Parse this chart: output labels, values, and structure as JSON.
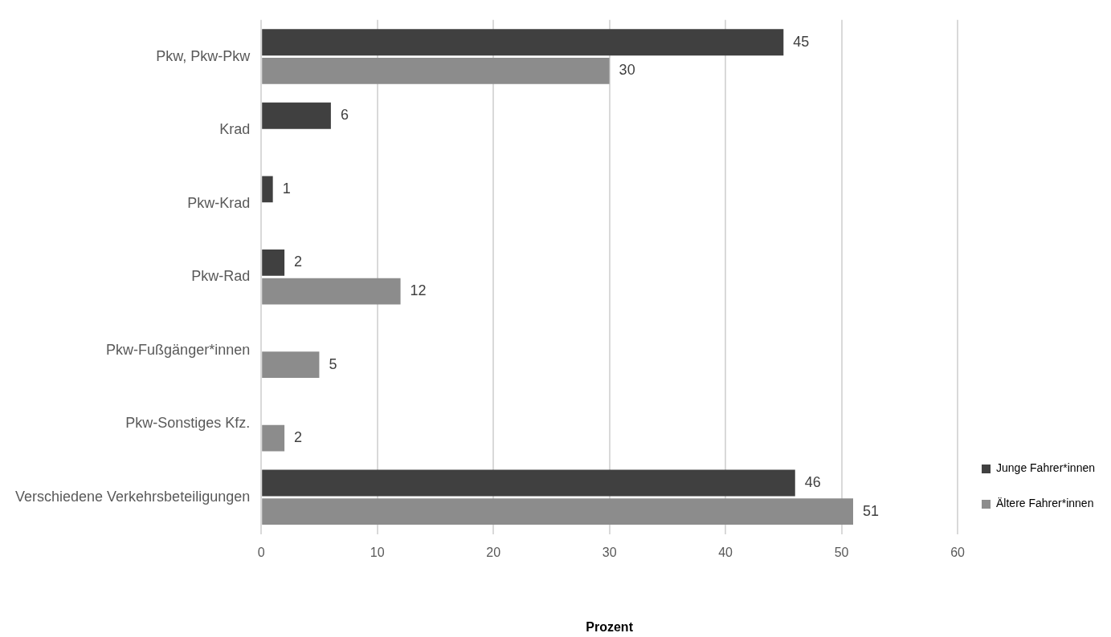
{
  "chart_data": {
    "type": "bar",
    "orientation": "horizontal",
    "xlabel": "Prozent",
    "categories": [
      "Pkw, Pkw-Pkw",
      "Krad",
      "Pkw-Krad",
      "Pkw-Rad",
      "Pkw-Fußgänger*innen",
      "Pkw-Sonstiges Kfz.",
      "Verschiedene Verkehrsbeteiligungen"
    ],
    "series": [
      {
        "name": "Junge Fahrer*innen",
        "color": "#404040",
        "values": [
          45,
          6,
          1,
          2,
          null,
          null,
          46
        ]
      },
      {
        "name": "Ältere Fahrer*innen",
        "color": "#8c8c8c",
        "values": [
          30,
          null,
          null,
          12,
          5,
          2,
          51
        ]
      }
    ],
    "xlim": [
      0,
      60
    ],
    "xticks": [
      0,
      10,
      20,
      30,
      40,
      50,
      60
    ],
    "grid": "x",
    "legend": "bottom right",
    "data_labels": true
  }
}
